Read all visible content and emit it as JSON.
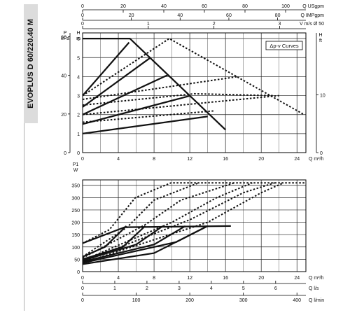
{
  "product_title": "EVOPLUS D 60/220.40 M",
  "chart_data": [
    {
      "type": "line",
      "title": "",
      "legend_box": "Δp-v Curves",
      "y_axis": {
        "name_top": "P",
        "unit": "kPa",
        "ticks": [
          0,
          20,
          40,
          60
        ],
        "range": [
          0,
          62
        ]
      },
      "h_axis": {
        "name": "H",
        "unit": "m",
        "ticks": [
          0,
          1,
          2,
          3,
          4,
          5,
          6
        ],
        "range": [
          0,
          6.3
        ]
      },
      "h_ft_axis": {
        "name": "H",
        "unit": "ft",
        "ticks": [
          0,
          10
        ],
        "range": [
          0,
          20.7
        ]
      },
      "top_axes": [
        {
          "label": "Q USgpm",
          "ticks": [
            0,
            20,
            40,
            60,
            80,
            100
          ],
          "range": [
            0,
            110
          ]
        },
        {
          "label": "Q IMPgpm",
          "ticks": [
            0,
            20,
            40,
            60,
            80
          ],
          "range": [
            0,
            91.6
          ]
        },
        {
          "label": "V m/s Ø 50",
          "ticks": [
            0,
            1,
            2,
            3
          ],
          "range": [
            0,
            3.4
          ]
        }
      ],
      "x_axis": {
        "label": "Q m³/h",
        "ticks": [
          0,
          4,
          8,
          12,
          16,
          20,
          24
        ],
        "range": [
          0,
          25
        ]
      },
      "grid": true,
      "series": [
        {
          "style": "solid",
          "points": [
            [
              0,
              6.0
            ],
            [
              5.3,
              6.0
            ],
            [
              16.0,
              1.2
            ]
          ]
        },
        {
          "style": "solid",
          "points": [
            [
              0,
              3.0
            ],
            [
              5.2,
              5.8
            ]
          ]
        },
        {
          "style": "solid",
          "points": [
            [
              0,
              2.4
            ],
            [
              7.6,
              5.0
            ]
          ]
        },
        {
          "style": "solid",
          "points": [
            [
              0,
              2.0
            ],
            [
              9.6,
              4.1
            ]
          ]
        },
        {
          "style": "solid",
          "points": [
            [
              0,
              1.5
            ],
            [
              12.1,
              3.0
            ]
          ]
        },
        {
          "style": "solid",
          "points": [
            [
              0,
              1.0
            ],
            [
              14.0,
              1.9
            ]
          ]
        },
        {
          "style": "dotted",
          "points": [
            [
              0,
              3.0
            ],
            [
              9.7,
              6.0
            ],
            [
              24.8,
              2.0
            ]
          ]
        },
        {
          "style": "dotted",
          "points": [
            [
              0,
              2.8
            ],
            [
              17.4,
              4.0
            ]
          ]
        },
        {
          "style": "dotted",
          "points": [
            [
              0,
              2.5
            ],
            [
              12.5,
              3.1
            ],
            [
              21.3,
              3.0
            ]
          ]
        },
        {
          "style": "dotted",
          "points": [
            [
              0,
              2.0
            ],
            [
              22.0,
              3.0
            ]
          ]
        },
        {
          "style": "dotted",
          "points": [
            [
              0,
              1.6
            ],
            [
              14.8,
              2.2
            ]
          ]
        }
      ]
    },
    {
      "type": "line",
      "title": "",
      "y_axis": {
        "name_top": "P1",
        "unit": "W",
        "ticks": [
          0,
          50,
          100,
          150,
          200,
          250,
          300,
          350
        ],
        "range": [
          0,
          372
        ]
      },
      "x_axis": {
        "label": "Q m³/h",
        "ticks": [
          0,
          4,
          8,
          12,
          16,
          20,
          24
        ],
        "range": [
          0,
          25
        ]
      },
      "bottom_axes": [
        {
          "label": "Q l/s",
          "ticks": [
            0,
            1,
            2,
            3,
            4,
            5,
            6
          ],
          "range": [
            0,
            6.94
          ]
        },
        {
          "label": "Q l/min",
          "ticks": [
            0,
            100,
            200,
            300,
            400
          ],
          "range": [
            0,
            416.7
          ]
        }
      ],
      "grid": true,
      "series": [
        {
          "style": "solid",
          "points": [
            [
              0,
              115
            ],
            [
              4.7,
              180
            ],
            [
              16.6,
              185
            ]
          ]
        },
        {
          "style": "solid",
          "points": [
            [
              0,
              60
            ],
            [
              2.5,
              100
            ],
            [
              4.9,
              185
            ]
          ]
        },
        {
          "style": "solid",
          "points": [
            [
              0,
              50
            ],
            [
              4.5,
              100
            ],
            [
              7.0,
              185
            ]
          ]
        },
        {
          "style": "solid",
          "points": [
            [
              0,
              45
            ],
            [
              6.0,
              110
            ],
            [
              9.0,
              185
            ]
          ]
        },
        {
          "style": "solid",
          "points": [
            [
              0,
              40
            ],
            [
              8.0,
              110
            ],
            [
              11.5,
              185
            ]
          ]
        },
        {
          "style": "solid",
          "points": [
            [
              0,
              35
            ],
            [
              10.5,
              120
            ],
            [
              14.0,
              185
            ]
          ]
        },
        {
          "style": "solid",
          "points": [
            [
              0,
              30
            ],
            [
              8.0,
              75
            ],
            [
              14.0,
              185
            ]
          ]
        },
        {
          "style": "dotted",
          "points": [
            [
              0,
              115
            ],
            [
              3.0,
              170
            ],
            [
              5.9,
              300
            ],
            [
              9.9,
              360
            ],
            [
              25.0,
              360
            ]
          ]
        },
        {
          "style": "dotted",
          "points": [
            [
              0,
              60
            ],
            [
              5.0,
              180
            ],
            [
              8.0,
              290
            ],
            [
              13.0,
              360
            ]
          ]
        },
        {
          "style": "dotted",
          "points": [
            [
              0,
              55
            ],
            [
              7.0,
              190
            ],
            [
              11.0,
              290
            ],
            [
              17.0,
              360
            ]
          ]
        },
        {
          "style": "dotted",
          "points": [
            [
              0,
              45
            ],
            [
              10.0,
              200
            ],
            [
              15.0,
              300
            ],
            [
              19.0,
              360
            ]
          ]
        },
        {
          "style": "dotted",
          "points": [
            [
              0,
              40
            ],
            [
              12.0,
              210
            ],
            [
              18.0,
              320
            ],
            [
              21.5,
              360
            ]
          ]
        },
        {
          "style": "dotted",
          "points": [
            [
              0,
              35
            ],
            [
              14.0,
              200
            ],
            [
              20.0,
              320
            ],
            [
              22.5,
              360
            ]
          ]
        }
      ]
    }
  ]
}
